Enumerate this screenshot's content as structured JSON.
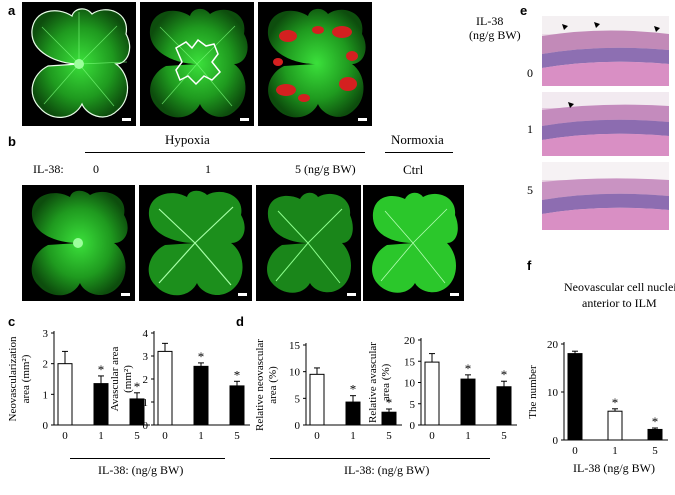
{
  "panels": {
    "a": "a",
    "b": "b",
    "c": "c",
    "d": "d",
    "e": "e",
    "f": "f"
  },
  "b": {
    "hypoxia": "Hypoxia",
    "normoxia": "Normoxia",
    "il38": "IL-38:",
    "dose0": "0",
    "dose1": "1",
    "dose5": "5 (ng/g BW)",
    "ctrl": "Ctrl"
  },
  "e": {
    "header_line1": "IL-38",
    "header_line2": "(ng/g BW)",
    "row_labels": [
      "0",
      "1",
      "5"
    ]
  },
  "c_footer": "IL-38:  (ng/g BW)",
  "d_footer": "IL-38:  (ng/g BW)",
  "f_title_line1": "Neovascular cell nuclei",
  "f_title_line2": "anterior to ILM",
  "f_footer": "IL-38   (ng/g BW)",
  "colors": {
    "retina_green": "#2bbf2b",
    "lesion_red": "#d42020",
    "bar_black": "#000000",
    "bar_white": "#ffffff",
    "he_pink": "#d98fc4",
    "he_purple": "#7d5ca8"
  },
  "chart_data": [
    {
      "id": "c1",
      "type": "bar",
      "ylabel": "Neovascularization area (mm²)",
      "categories": [
        "0",
        "1",
        "5"
      ],
      "values": [
        2.0,
        1.35,
        0.85
      ],
      "errors": [
        0.4,
        0.25,
        0.2
      ],
      "fills": [
        "white",
        "black",
        "black"
      ],
      "significance": [
        "",
        "*",
        "*"
      ],
      "ylim": [
        0,
        3
      ],
      "yticks": [
        "0",
        "1",
        "2",
        "3"
      ]
    },
    {
      "id": "c2",
      "type": "bar",
      "ylabel": "Avascular area (mm²)",
      "categories": [
        "0",
        "1",
        "5"
      ],
      "values": [
        3.2,
        2.55,
        1.7
      ],
      "errors": [
        0.35,
        0.15,
        0.2
      ],
      "fills": [
        "white",
        "black",
        "black"
      ],
      "significance": [
        "",
        "*",
        "*"
      ],
      "ylim": [
        0,
        4
      ],
      "yticks": [
        "0",
        "1",
        "2",
        "3",
        "4"
      ]
    },
    {
      "id": "d1",
      "type": "bar",
      "ylabel": "Relative neovascular area (%)",
      "categories": [
        "0",
        "1",
        "5"
      ],
      "values": [
        9.5,
        4.3,
        2.4
      ],
      "errors": [
        1.2,
        1.2,
        0.6
      ],
      "fills": [
        "white",
        "black",
        "black"
      ],
      "significance": [
        "",
        "*",
        "*"
      ],
      "ylim": [
        0,
        15
      ],
      "yticks": [
        "0",
        "5",
        "10",
        "15"
      ]
    },
    {
      "id": "d2",
      "type": "bar",
      "ylabel": "Relative avascular area (%)",
      "categories": [
        "0",
        "1",
        "5"
      ],
      "values": [
        14.8,
        10.8,
        9.0
      ],
      "errors": [
        2.0,
        1.0,
        1.3
      ],
      "fills": [
        "white",
        "black",
        "black"
      ],
      "significance": [
        "",
        "*",
        "*"
      ],
      "ylim": [
        0,
        20
      ],
      "yticks": [
        "0",
        "5",
        "10",
        "15",
        "20"
      ]
    },
    {
      "id": "f1",
      "type": "bar",
      "ylabel": "The number",
      "categories": [
        "0",
        "1",
        "5"
      ],
      "values": [
        18.0,
        6.0,
        2.2
      ],
      "errors": [
        0.5,
        0.5,
        0.3
      ],
      "fills": [
        "black",
        "white",
        "black"
      ],
      "significance": [
        "",
        "*",
        "*"
      ],
      "ylim": [
        0,
        20
      ],
      "yticks": [
        "0",
        "10",
        "20"
      ]
    }
  ]
}
